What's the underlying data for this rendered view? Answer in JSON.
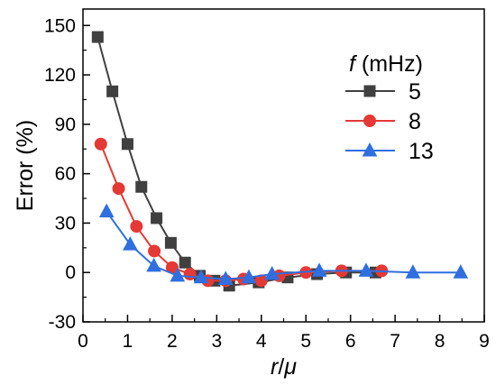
{
  "chart_data": {
    "type": "line",
    "xlabel": "r/μ",
    "xlabel_parts": {
      "var1": "r",
      "sep": "/",
      "var2": "μ"
    },
    "ylabel": "Error (%)",
    "xlim": [
      0,
      9
    ],
    "ylim": [
      -30,
      160
    ],
    "xticks": [
      "0",
      "1",
      "2",
      "3",
      "4",
      "5",
      "6",
      "7",
      "8",
      "9"
    ],
    "yticks": [
      "-30",
      "0",
      "30",
      "60",
      "90",
      "120",
      "150"
    ],
    "grid": false,
    "legend": {
      "placement": "top-right",
      "title_var": "f",
      "title_unit": " (mHz)"
    },
    "series": [
      {
        "name": "5",
        "color": "#404040",
        "marker": "square",
        "x": [
          0.33,
          0.66,
          1.0,
          1.31,
          1.65,
          1.97,
          2.29,
          2.62,
          2.95,
          3.28,
          3.94,
          4.59,
          5.25,
          5.9,
          6.56
        ],
        "y": [
          143,
          110,
          78,
          52,
          33,
          18,
          6,
          -2,
          -5,
          -8,
          -6,
          -3,
          -1,
          0,
          0
        ]
      },
      {
        "name": "8",
        "color": "#e53935",
        "marker": "circle",
        "x": [
          0.4,
          0.8,
          1.2,
          1.6,
          2.0,
          2.4,
          2.8,
          3.2,
          3.6,
          4.0,
          4.4,
          5.0,
          5.8,
          6.7
        ],
        "y": [
          78,
          51,
          28,
          13,
          3,
          -1,
          -5,
          -5,
          -4,
          -5,
          -2,
          0,
          1,
          1
        ]
      },
      {
        "name": "13",
        "color": "#2f6fe0",
        "marker": "triangle",
        "x": [
          0.53,
          1.06,
          1.59,
          2.12,
          2.65,
          3.2,
          3.72,
          4.24,
          5.3,
          6.35,
          7.4,
          8.47
        ],
        "y": [
          37,
          17,
          4,
          -2,
          -3,
          -4,
          -3,
          -1,
          1,
          1,
          0,
          0
        ]
      }
    ]
  }
}
